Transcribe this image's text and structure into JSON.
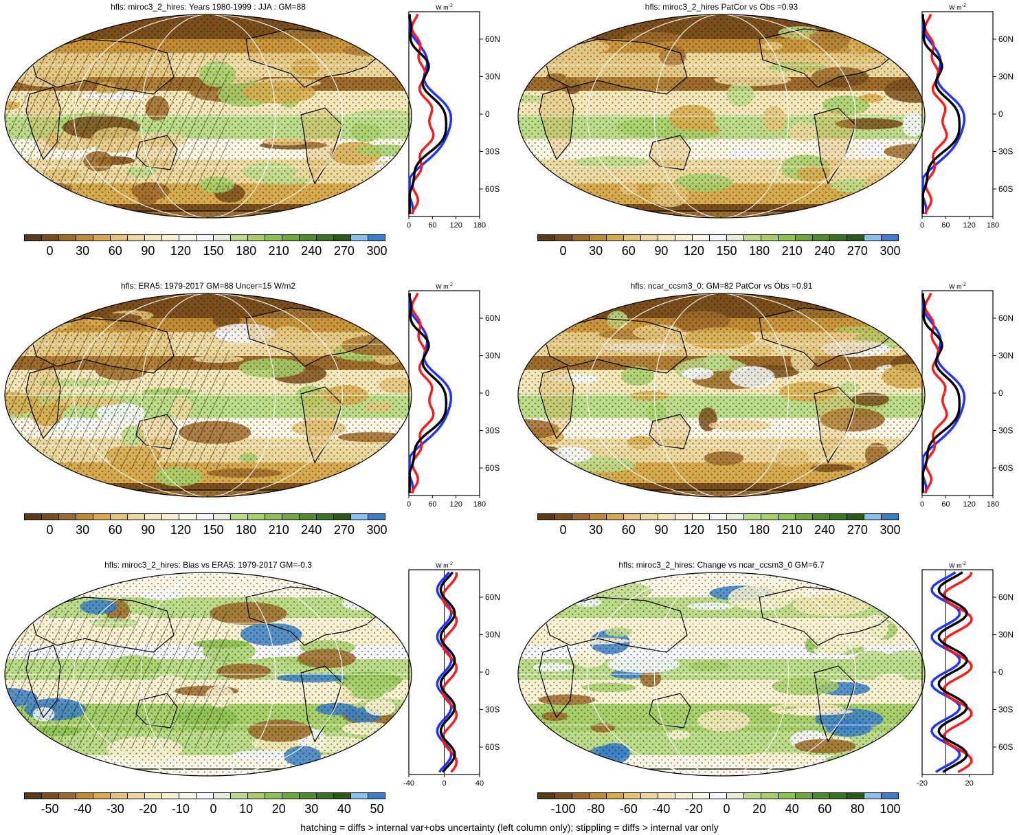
{
  "palette": {
    "full": [
      "#5a3a14",
      "#7a4f1c",
      "#9c6a2a",
      "#c08a32",
      "#d6aa4c",
      "#e3c47a",
      "#ecd79c",
      "#f3e6b7",
      "#f8f0cf",
      "#fbf7e4",
      "#f5f7fb",
      "#e4eed8",
      "#bcdb88",
      "#a6cf6a",
      "#8cc050",
      "#6fa83c",
      "#4f8c2a",
      "#3b7421",
      "#2a5c18",
      "#85c1ea",
      "#3a7fc6"
    ],
    "obs_line": "#1e33ff",
    "model_line": "#000000",
    "diff_line": "#ff1a1a"
  },
  "panels": [
    {
      "id": "miroc-clim",
      "title": "hfls: miroc3_2_hires: Years 1980-1999 : JJA : GM=88",
      "colorbar_labels": [
        "0",
        "30",
        "60",
        "90",
        "120",
        "150",
        "180",
        "210",
        "240",
        "270",
        "300"
      ],
      "zonal_unit": "W m",
      "zonal_unit_sup": "-2",
      "zonal_xticks": [
        "0",
        "60",
        "120",
        "180"
      ],
      "zonal_yticks": [
        "60N",
        "30N",
        "0",
        "30S",
        "60S"
      ],
      "hatching": true
    },
    {
      "id": "miroc-patcor",
      "title": "hfls: miroc3_2_hires PatCor vs Obs =0.93",
      "colorbar_labels": [
        "0",
        "30",
        "60",
        "90",
        "120",
        "150",
        "180",
        "210",
        "240",
        "270",
        "300"
      ],
      "zonal_unit": "W m",
      "zonal_unit_sup": "-2",
      "zonal_xticks": [
        "0",
        "60",
        "120",
        "180"
      ],
      "zonal_yticks": [
        "60N",
        "30N",
        "0",
        "30S",
        "60S"
      ],
      "hatching": false
    },
    {
      "id": "era5",
      "title": "hfls: ERA5: 1979-2017 GM=88 Uncer=15 W/m2",
      "colorbar_labels": [
        "0",
        "30",
        "60",
        "90",
        "120",
        "150",
        "180",
        "210",
        "240",
        "270",
        "300"
      ],
      "zonal_unit": "W m",
      "zonal_unit_sup": "-2",
      "zonal_xticks": [
        "0",
        "60",
        "120",
        "180"
      ],
      "zonal_yticks": [
        "60N",
        "30N",
        "0",
        "30S",
        "60S"
      ],
      "hatching": true
    },
    {
      "id": "ncar",
      "title": "hfls: ncar_ccsm3_0: GM=82 PatCor vs Obs =0.91",
      "colorbar_labels": [
        "0",
        "30",
        "60",
        "90",
        "120",
        "150",
        "180",
        "210",
        "240",
        "270",
        "300"
      ],
      "zonal_unit": "W m",
      "zonal_unit_sup": "-2",
      "zonal_xticks": [
        "0",
        "60",
        "120",
        "180"
      ],
      "zonal_yticks": [
        "60N",
        "30N",
        "0",
        "30S",
        "60S"
      ],
      "hatching": false
    },
    {
      "id": "bias",
      "title": "hfls: miroc3_2_hires: Bias vs ERA5: 1979-2017 GM=-0.3",
      "colorbar_labels": [
        "-50",
        "-40",
        "-30",
        "-20",
        "-10",
        "0",
        "10",
        "20",
        "30",
        "40",
        "50"
      ],
      "zonal_unit": "W m",
      "zonal_unit_sup": "-2",
      "zonal_xticks": [
        "-40",
        "0",
        "40"
      ],
      "zonal_yticks": [
        "60N",
        "30N",
        "0",
        "30S",
        "60S"
      ],
      "hatching": true
    },
    {
      "id": "change",
      "title": "hfls: miroc3_2_hires: Change vs ncar_ccsm3_0 GM=6.7",
      "colorbar_labels": [
        "-100",
        "-80",
        "-60",
        "-40",
        "-20",
        "0",
        "20",
        "40",
        "60",
        "80",
        "100"
      ],
      "zonal_unit": "W m",
      "zonal_unit_sup": "-2",
      "zonal_xticks": [
        "-20",
        "20"
      ],
      "zonal_yticks": [
        "60N",
        "30N",
        "0",
        "30S",
        "60S"
      ],
      "hatching": false
    }
  ],
  "footer": "hatching = diffs > internal var+obs uncertainty (left column only); stippling = diffs > internal var only"
}
